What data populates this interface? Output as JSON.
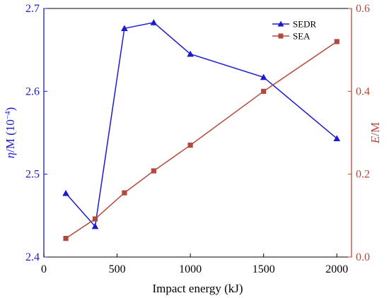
{
  "chart_data": {
    "type": "line",
    "x": [
      150,
      350,
      550,
      750,
      1000,
      1500,
      2000
    ],
    "xlabel": "Impact energy (kJ)",
    "xlim": [
      0,
      2100
    ],
    "xticks": [
      "0",
      "500",
      "1000",
      "1500",
      "2000"
    ],
    "xtick_values": [
      0,
      500,
      1000,
      1500,
      2000
    ],
    "left_axis": {
      "label_italic": "η",
      "label_rest": "/M (10",
      "label_sup": "−4",
      "label_close": ")",
      "ylim": [
        2.4,
        2.7
      ],
      "ticks": [
        "2.4",
        "2.5",
        "2.6",
        "2.7"
      ],
      "tick_values": [
        2.4,
        2.5,
        2.6,
        2.7
      ],
      "color": "#1a1ad0"
    },
    "right_axis": {
      "label_italic": "E",
      "label_rest": "/M",
      "ylim": [
        0.0,
        0.6
      ],
      "ticks": [
        "0.0",
        "0.2",
        "0.4",
        "0.6"
      ],
      "tick_values": [
        0.0,
        0.2,
        0.4,
        0.6
      ],
      "color": "#b24a3a"
    },
    "series": [
      {
        "name": "SEDR",
        "axis": "left",
        "marker": "triangle",
        "color": "#1a1ad0",
        "values": [
          2.477,
          2.437,
          2.676,
          2.683,
          2.645,
          2.617,
          2.543
        ]
      },
      {
        "name": "SEA",
        "axis": "right",
        "marker": "square",
        "color": "#b24a3a",
        "values": [
          0.045,
          0.092,
          0.155,
          0.208,
          0.27,
          0.4,
          0.52
        ]
      }
    ],
    "legend_position": "top-right",
    "grid": false
  }
}
